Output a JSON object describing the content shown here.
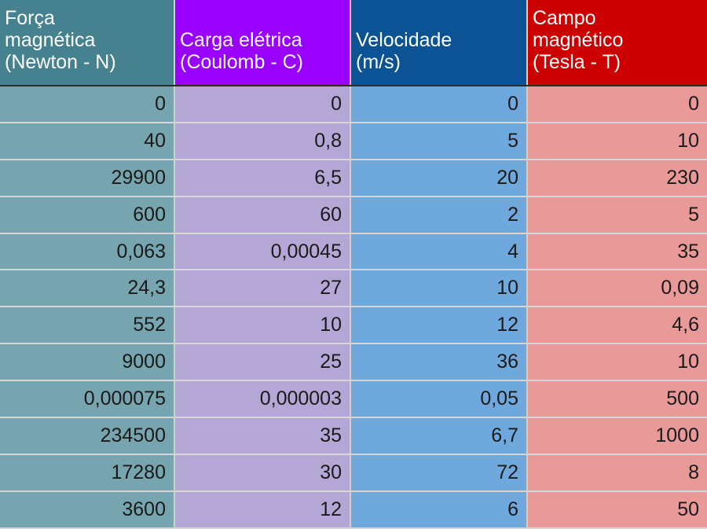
{
  "colors": {
    "header_forca": "#45818e",
    "header_carga": "#9900ff",
    "header_velocidade": "#0b5394",
    "header_campo": "#cc0000",
    "body_forca": "#76a5af",
    "body_carga": "#b4a7d6",
    "body_velocidade": "#6fa8dc",
    "body_campo": "#ea9999"
  },
  "headers": [
    "Força\nmagnética\n(Newton - N)",
    "\nCarga elétrica\n(Coulomb - C)",
    "\nVelocidade\n(m/s)",
    "Campo\nmagnético\n(Tesla - T)"
  ],
  "rows": [
    [
      "0",
      "0",
      "0",
      "0"
    ],
    [
      "40",
      "0,8",
      "5",
      "10"
    ],
    [
      "29900",
      "6,5",
      "20",
      "230"
    ],
    [
      "600",
      "60",
      "2",
      "5"
    ],
    [
      "0,063",
      "0,00045",
      "4",
      "35"
    ],
    [
      "24,3",
      "27",
      "10",
      "0,09"
    ],
    [
      "552",
      "10",
      "12",
      "4,6"
    ],
    [
      "9000",
      "25",
      "36",
      "10"
    ],
    [
      "0,000075",
      "0,000003",
      "0,05",
      "500"
    ],
    [
      "234500",
      "35",
      "6,7",
      "1000"
    ],
    [
      "17280",
      "30",
      "72",
      "8"
    ],
    [
      "3600",
      "12",
      "6",
      "50"
    ]
  ]
}
